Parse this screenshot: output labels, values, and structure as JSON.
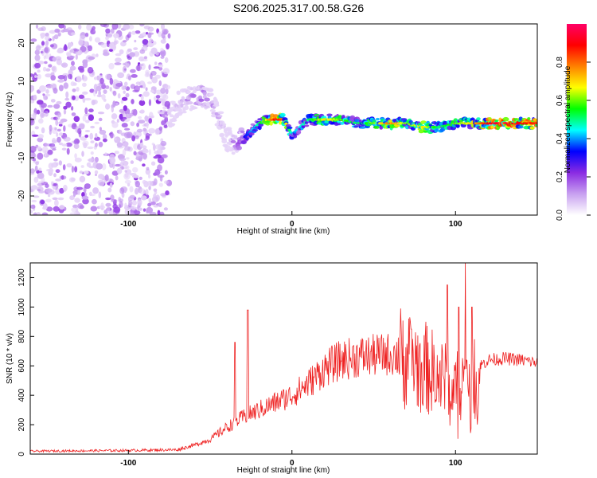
{
  "title": "S206.2025.317.00.58.G26",
  "chart_data": [
    {
      "type": "heatmap",
      "xlabel": "Height of straight line (km)",
      "ylabel": "Frequency (Hz)",
      "xlim": [
        -160,
        150
      ],
      "ylim": [
        -25,
        25
      ],
      "x_ticks": [
        "-100",
        "0",
        "100"
      ],
      "y_ticks": [
        "20",
        "10",
        "0",
        "-10",
        "-20"
      ],
      "colorbar": {
        "label": "Normalized spectral amplitude",
        "range": [
          0.0,
          1.0
        ],
        "ticks": [
          "0.0",
          "0.2",
          "0.4",
          "0.6",
          "0.8"
        ],
        "colors": [
          "#ffffff",
          "#c8a0f0",
          "#8a2be2",
          "#0000ff",
          "#00ffff",
          "#00ff00",
          "#ffff00",
          "#ff8000",
          "#ff0000",
          "#ff0066"
        ]
      },
      "signal_trace": {
        "x": [
          -75,
          -70,
          -65,
          -60,
          -55,
          -50,
          -45,
          -40,
          -35,
          -30,
          -25,
          -20,
          -15,
          -10,
          -5,
          0,
          10,
          20,
          30,
          40,
          50,
          60,
          70,
          80,
          90,
          100,
          110,
          120,
          130,
          140,
          150
        ],
        "freq": [
          0,
          4,
          5,
          6,
          6,
          5,
          1,
          -5,
          -6,
          -5,
          -3,
          -1,
          0,
          0,
          0,
          -4,
          0,
          0,
          0,
          -1,
          -1,
          -1,
          -1,
          -2,
          -2,
          -1,
          -1,
          -1,
          -1,
          -1,
          -1
        ],
        "amplitude": [
          0.05,
          0.15,
          0.15,
          0.2,
          0.25,
          0.2,
          0.15,
          0.1,
          0.2,
          0.3,
          0.4,
          0.5,
          0.7,
          0.9,
          0.8,
          0.4,
          0.5,
          0.7,
          0.6,
          0.5,
          0.6,
          0.8,
          0.6,
          0.7,
          0.5,
          0.6,
          0.7,
          0.9,
          0.95,
          0.9,
          0.85
        ]
      },
      "noise_region_x": [
        -160,
        -75
      ]
    },
    {
      "type": "line",
      "xlabel": "Height of straight line (km)",
      "ylabel": "SNR (10 * v/v)",
      "xlim": [
        -160,
        150
      ],
      "ylim": [
        0,
        1300
      ],
      "x_ticks": [
        "-100",
        "0",
        "100"
      ],
      "y_ticks": [
        "0",
        "200",
        "400",
        "600",
        "800",
        "1000",
        "1200"
      ],
      "color": "#ee2222",
      "trend": {
        "x": [
          -160,
          -100,
          -70,
          -60,
          -50,
          -40,
          -30,
          -20,
          -10,
          0,
          10,
          20,
          30,
          40,
          50,
          60,
          70,
          80,
          90,
          100,
          110,
          120,
          130,
          140,
          150
        ],
        "y": [
          20,
          25,
          30,
          60,
          100,
          180,
          250,
          300,
          350,
          400,
          480,
          580,
          640,
          660,
          670,
          680,
          650,
          600,
          520,
          450,
          560,
          640,
          650,
          640,
          620
        ]
      },
      "spikes": [
        {
          "x": -35,
          "y": 760
        },
        {
          "x": -27,
          "y": 980
        },
        {
          "x": 73,
          "y": 850
        },
        {
          "x": 95,
          "y": 1150
        },
        {
          "x": 102,
          "y": 1000
        },
        {
          "x": 106,
          "y": 1310
        },
        {
          "x": 110,
          "y": 1000
        }
      ]
    }
  ]
}
